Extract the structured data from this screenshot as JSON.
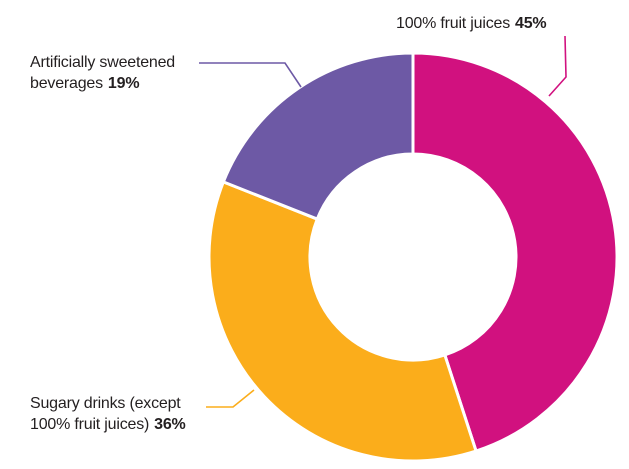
{
  "chart_data": {
    "type": "pie",
    "subtype": "donut",
    "title": "",
    "unit": "%",
    "start_angle_deg": 0,
    "direction": "clockwise",
    "inner_radius_ratio": 0.5,
    "separator_color": "#ffffff",
    "background_color": "#ffffff",
    "legend_position": "callout-labels",
    "slices": [
      {
        "id": "fruit-juices",
        "label": "100% fruit juices",
        "value": 45,
        "display": "45%",
        "color": "#d1117f"
      },
      {
        "id": "sugary-drinks",
        "label": "Sugary drinks (except 100% fruit juices)",
        "value": 36,
        "display": "36%",
        "color": "#fbad1b"
      },
      {
        "id": "artificially-sweetened",
        "label": "Artificially sweetened beverages",
        "value": 19,
        "display": "19%",
        "color": "#6d59a5"
      }
    ]
  },
  "callouts": {
    "fruit_juices": {
      "text": "100% fruit juices",
      "pct": "45%"
    },
    "artificially_sweetened": {
      "line1": "Artificially sweetened",
      "line2": "beverages",
      "pct": "19%"
    },
    "sugary_drinks": {
      "line1": "Sugary drinks (except",
      "line2": "100% fruit juices)",
      "pct": "36%"
    }
  },
  "text_color": "#231f20"
}
